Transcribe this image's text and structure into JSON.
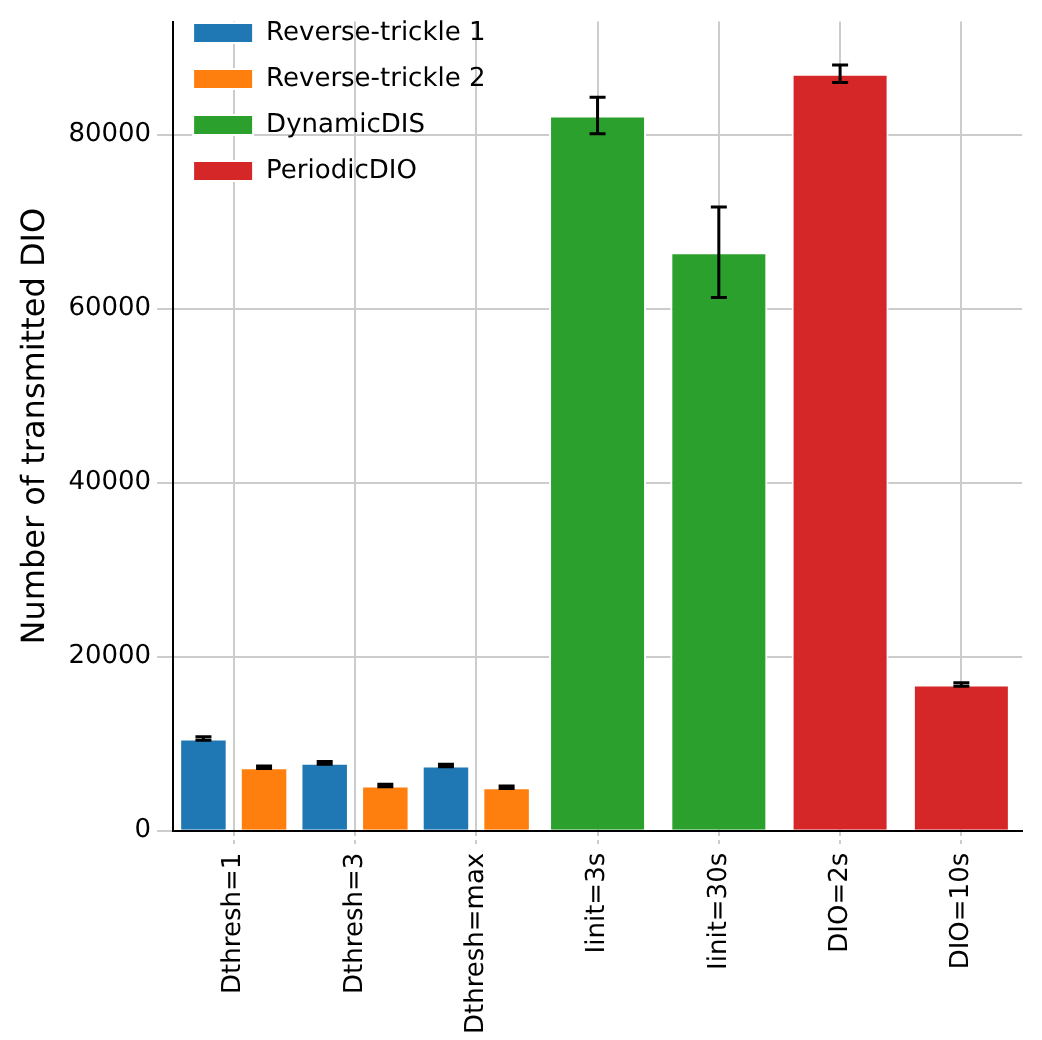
{
  "chart_data": {
    "type": "bar",
    "ylabel": "Number of transmitted DIO",
    "categories": [
      "Dthresh=1",
      "Dthresh=3",
      "Dthresh=max",
      "Iinit=3s",
      "Iinit=30s",
      "DIO=2s",
      "DIO=10s"
    ],
    "series": [
      {
        "name": "Reverse-trickle 1",
        "color": "#1f77b4",
        "values": [
          10600,
          7800,
          7500,
          null,
          null,
          null,
          null
        ],
        "errors": [
          200,
          150,
          150,
          null,
          null,
          null,
          null
        ]
      },
      {
        "name": "Reverse-trickle 2",
        "color": "#ff7f0e",
        "values": [
          7300,
          5200,
          5000,
          null,
          null,
          null,
          null
        ],
        "errors": [
          150,
          150,
          150,
          null,
          null,
          null,
          null
        ]
      },
      {
        "name": "DynamicDIS",
        "color": "#2ca02c",
        "values": [
          null,
          null,
          null,
          82200,
          66500,
          null,
          null
        ],
        "errors": [
          null,
          null,
          null,
          2100,
          5200,
          null,
          null
        ]
      },
      {
        "name": "PeriodicDIO",
        "color": "#d62728",
        "values": [
          null,
          null,
          null,
          null,
          null,
          87000,
          16800
        ],
        "errors": [
          null,
          null,
          null,
          null,
          null,
          1000,
          200
        ]
      }
    ],
    "ylim": [
      0,
      93000
    ],
    "yticks": [
      0,
      20000,
      40000,
      60000,
      80000
    ],
    "grid": true,
    "legend": "top left"
  }
}
